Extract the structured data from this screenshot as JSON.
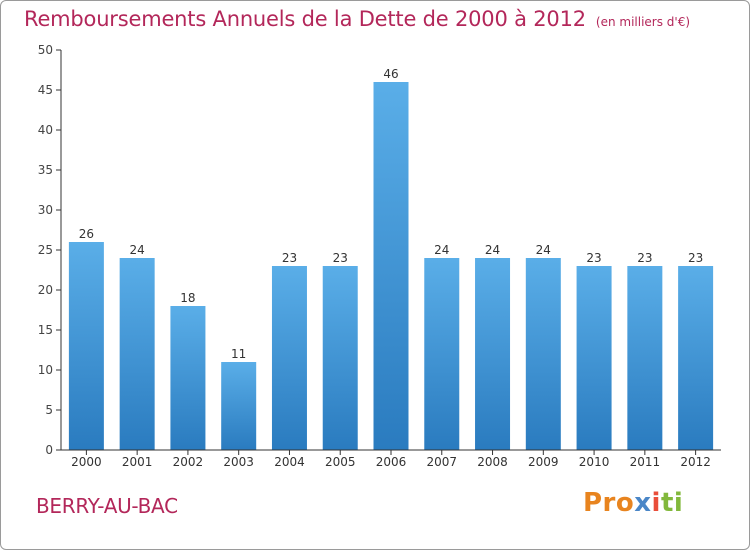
{
  "header": {
    "title": "Remboursements Annuels de la Dette de 2000 à 2012",
    "unit": "(en milliers d'€)"
  },
  "footer": {
    "commune": "BERRY-AU-BAC",
    "logo_text": "Proxiti",
    "logo_parts": [
      "Pro",
      "x",
      "i",
      "ti"
    ]
  },
  "colors": {
    "title": "#b3275a",
    "bar_top": "#5aaee8",
    "bar_bottom": "#2a7bbf",
    "axis": "#333333",
    "grid": "#cccccc"
  },
  "chart_data": {
    "type": "bar",
    "title": "Remboursements Annuels de la Dette de 2000 à 2012",
    "xlabel": "",
    "ylabel": "",
    "categories": [
      "2000",
      "2001",
      "2002",
      "2003",
      "2004",
      "2005",
      "2006",
      "2007",
      "2008",
      "2009",
      "2010",
      "2011",
      "2012"
    ],
    "values": [
      26,
      24,
      18,
      11,
      23,
      23,
      46,
      24,
      24,
      24,
      23,
      23,
      23
    ],
    "ylim": [
      0,
      50
    ],
    "yticks": [
      0,
      5,
      10,
      15,
      20,
      25,
      30,
      35,
      40,
      45,
      50
    ],
    "grid": false,
    "legend": "none"
  }
}
